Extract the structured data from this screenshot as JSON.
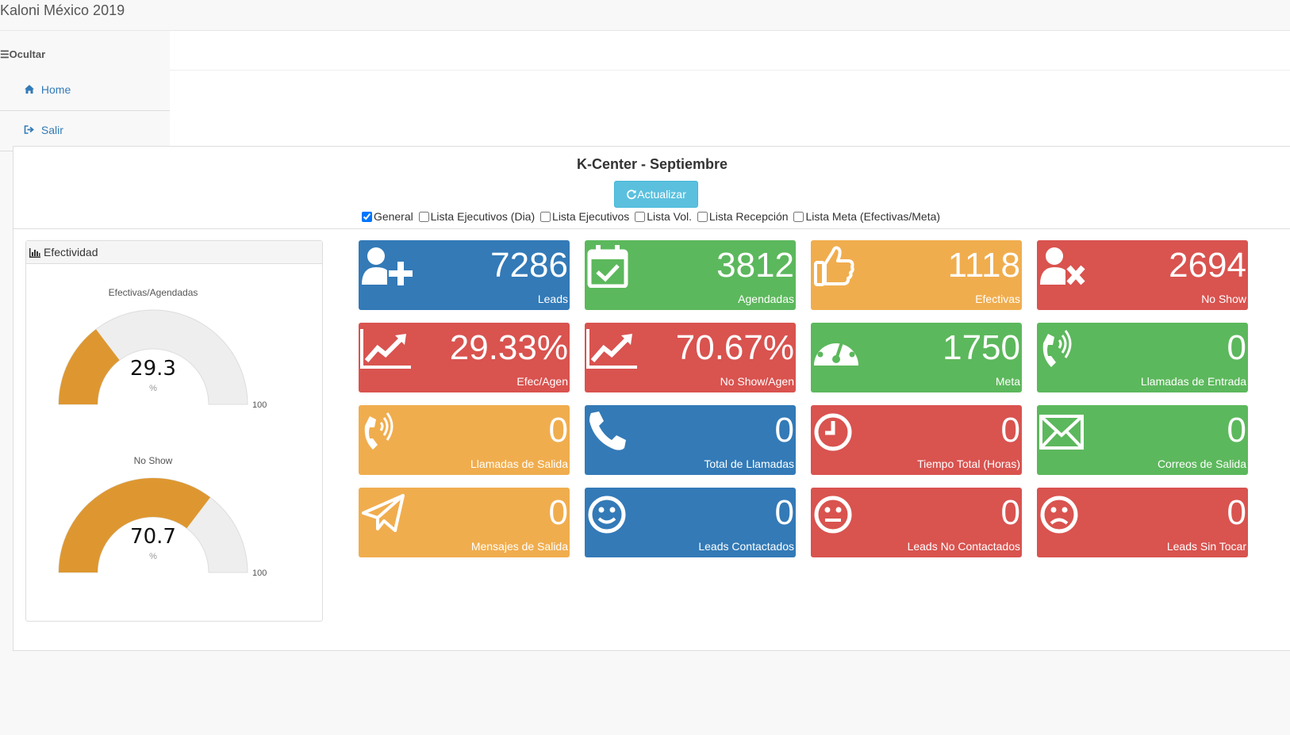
{
  "header": {
    "brand": "Kaloni México 2019"
  },
  "sidebar": {
    "toggle_label": "☰Ocultar",
    "items": [
      {
        "label": "Home",
        "icon": "home-icon"
      },
      {
        "label": "Salir",
        "icon": "sign-out-icon"
      }
    ]
  },
  "main": {
    "title": "K-Center - Septiembre",
    "refresh_label": "Actualizar",
    "options": [
      {
        "label": "General",
        "checked": true
      },
      {
        "label": "Lista Ejecutivos (Dia)",
        "checked": false
      },
      {
        "label": "Lista Ejecutivos",
        "checked": false
      },
      {
        "label": "Lista Vol.",
        "checked": false
      },
      {
        "label": "Lista Recepción",
        "checked": false
      },
      {
        "label": "Lista Meta (Efectivas/Meta)",
        "checked": false
      }
    ]
  },
  "gauges": {
    "panel_title": "Efectividad",
    "items": [
      {
        "label": "Efectivas/Agendadas",
        "value": "29.3",
        "unit": "%",
        "max": "100",
        "fraction": 0.293
      },
      {
        "label": "No Show",
        "value": "70.7",
        "unit": "%",
        "max": "100",
        "fraction": 0.707
      }
    ],
    "colors": {
      "fill": "#de9730",
      "track": "#eeeeee"
    }
  },
  "tiles": [
    {
      "value": "7286",
      "label": "Leads",
      "color": "blue",
      "icon": "user-plus-icon"
    },
    {
      "value": "3812",
      "label": "Agendadas",
      "color": "green",
      "icon": "calendar-check-icon"
    },
    {
      "value": "1118",
      "label": "Efectivas",
      "color": "orange",
      "icon": "thumbs-up-icon"
    },
    {
      "value": "2694",
      "label": "No Show",
      "color": "red",
      "icon": "user-times-icon"
    },
    {
      "value": "29.33%",
      "label": "Efec/Agen",
      "color": "red",
      "icon": "line-chart-icon"
    },
    {
      "value": "70.67%",
      "label": "No Show/Agen",
      "color": "red",
      "icon": "line-chart-icon"
    },
    {
      "value": "1750",
      "label": "Meta",
      "color": "green",
      "icon": "dashboard-icon"
    },
    {
      "value": "0",
      "label": "Llamadas de Entrada",
      "color": "green",
      "icon": "phone-volume-icon"
    },
    {
      "value": "0",
      "label": "Llamadas de Salida",
      "color": "orange",
      "icon": "phone-volume-icon"
    },
    {
      "value": "0",
      "label": "Total de Llamadas",
      "color": "blue",
      "icon": "phone-icon"
    },
    {
      "value": "0",
      "label": "Tiempo Total (Horas)",
      "color": "red",
      "icon": "clock-icon"
    },
    {
      "value": "0",
      "label": "Correos de Salida",
      "color": "green",
      "icon": "envelope-icon"
    },
    {
      "value": "0",
      "label": "Mensajes de Salida",
      "color": "orange",
      "icon": "paper-plane-icon"
    },
    {
      "value": "0",
      "label": "Leads Contactados",
      "color": "blue",
      "icon": "smile-icon"
    },
    {
      "value": "0",
      "label": "Leads No Contactados",
      "color": "red",
      "icon": "meh-icon"
    },
    {
      "value": "0",
      "label": "Leads Sin Tocar",
      "color": "red",
      "icon": "frown-icon"
    }
  ]
}
